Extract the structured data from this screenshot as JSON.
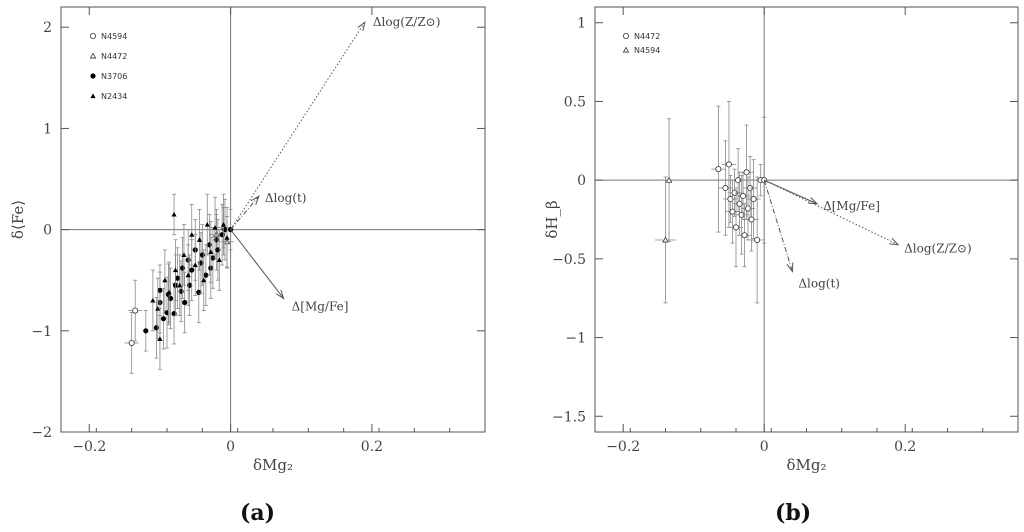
{
  "chart_data": [
    {
      "panel": "(a)",
      "type": "scatter",
      "xlabel": "δMg₂",
      "ylabel": "δ⟨Fe⟩",
      "xlim": [
        -0.24,
        0.36
      ],
      "ylim": [
        -2.0,
        2.2
      ],
      "xticks": [
        "−0.2",
        "0",
        "0.2"
      ],
      "xtick_values": [
        -0.2,
        0,
        0.2
      ],
      "yticks": [
        "−2",
        "−1",
        "0",
        "1",
        "2"
      ],
      "ytick_values": [
        -2,
        -1,
        0,
        1,
        2
      ],
      "legend": [
        {
          "label": "N4594",
          "marker": "open-circle"
        },
        {
          "label": "N4472",
          "marker": "open-triangle"
        },
        {
          "label": "N3706",
          "marker": "filled-circle"
        },
        {
          "label": "N2434",
          "marker": "filled-triangle"
        }
      ],
      "vectors": [
        {
          "label": "Δlog(Z/Z⊙)",
          "dx": 0.19,
          "dy": 2.05,
          "style": "dotted"
        },
        {
          "label": "Δlog(t)",
          "dx": 0.04,
          "dy": 0.33,
          "style": "dash-dot"
        },
        {
          "label": "Δ[Mg/Fe]",
          "dx": 0.075,
          "dy": -0.68,
          "style": "solid"
        }
      ],
      "series": [
        {
          "name": "N4594",
          "marker": "open-circle",
          "points": [
            {
              "x": -0.14,
              "y": -1.12,
              "ex": 0.01,
              "ey": 0.3
            },
            {
              "x": -0.135,
              "y": -0.8,
              "ex": 0.01,
              "ey": 0.3
            }
          ]
        },
        {
          "name": "N4472",
          "marker": "open-triangle",
          "points": [
            {
              "x": -0.02,
              "y": -0.05,
              "ex": 0.01,
              "ey": 0.2
            },
            {
              "x": -0.01,
              "y": 0.02,
              "ex": 0.01,
              "ey": 0.2
            },
            {
              "x": -0.005,
              "y": -0.12,
              "ex": 0.01,
              "ey": 0.25
            }
          ]
        },
        {
          "name": "N3706",
          "marker": "filled-circle",
          "points": [
            {
              "x": -0.12,
              "y": -1.0,
              "ey": 0.2
            },
            {
              "x": -0.105,
              "y": -0.97,
              "ey": 0.3
            },
            {
              "x": -0.1,
              "y": -0.72,
              "ey": 0.3
            },
            {
              "x": -0.1,
              "y": -0.6,
              "ey": 0.25
            },
            {
              "x": -0.095,
              "y": -0.88,
              "ey": 0.3
            },
            {
              "x": -0.09,
              "y": -0.82,
              "ey": 0.35
            },
            {
              "x": -0.088,
              "y": -0.64,
              "ey": 0.3
            },
            {
              "x": -0.085,
              "y": -0.68,
              "ey": 0.3
            },
            {
              "x": -0.08,
              "y": -0.83,
              "ey": 0.3
            },
            {
              "x": -0.078,
              "y": -0.55,
              "ey": 0.3
            },
            {
              "x": -0.075,
              "y": -0.48,
              "ey": 0.3
            },
            {
              "x": -0.07,
              "y": -0.61,
              "ey": 0.3
            },
            {
              "x": -0.068,
              "y": -0.38,
              "ey": 0.3
            },
            {
              "x": -0.065,
              "y": -0.72,
              "ey": 0.3
            },
            {
              "x": -0.06,
              "y": -0.3,
              "ey": 0.3
            },
            {
              "x": -0.058,
              "y": -0.55,
              "ey": 0.3
            },
            {
              "x": -0.055,
              "y": -0.4,
              "ey": 0.3
            },
            {
              "x": -0.05,
              "y": -0.2,
              "ey": 0.3
            },
            {
              "x": -0.045,
              "y": -0.62,
              "ey": 0.3
            },
            {
              "x": -0.042,
              "y": -0.33,
              "ey": 0.3
            },
            {
              "x": -0.04,
              "y": -0.25,
              "ey": 0.3
            },
            {
              "x": -0.035,
              "y": -0.45,
              "ey": 0.3
            },
            {
              "x": -0.03,
              "y": -0.15,
              "ey": 0.3
            },
            {
              "x": -0.028,
              "y": -0.38,
              "ey": 0.3
            },
            {
              "x": -0.025,
              "y": -0.28,
              "ey": 0.3
            },
            {
              "x": -0.02,
              "y": -0.1,
              "ey": 0.3
            },
            {
              "x": -0.018,
              "y": -0.2,
              "ey": 0.3
            },
            {
              "x": -0.012,
              "y": -0.05,
              "ey": 0.3
            },
            {
              "x": -0.008,
              "y": 0.0,
              "ey": 0.3
            },
            {
              "x": 0.0,
              "y": 0.0,
              "ey": 0.2
            }
          ]
        },
        {
          "name": "N2434",
          "marker": "filled-triangle",
          "points": [
            {
              "x": -0.11,
              "y": -0.7,
              "ey": 0.3
            },
            {
              "x": -0.103,
              "y": -0.78,
              "ey": 0.3
            },
            {
              "x": -0.1,
              "y": -1.08,
              "ey": 0.3
            },
            {
              "x": -0.093,
              "y": -0.5,
              "ey": 0.3
            },
            {
              "x": -0.087,
              "y": -0.62,
              "ey": 0.3
            },
            {
              "x": -0.08,
              "y": 0.15,
              "ey": 0.2
            },
            {
              "x": -0.078,
              "y": -0.4,
              "ey": 0.3
            },
            {
              "x": -0.072,
              "y": -0.55,
              "ey": 0.3
            },
            {
              "x": -0.066,
              "y": -0.25,
              "ey": 0.3
            },
            {
              "x": -0.06,
              "y": -0.45,
              "ey": 0.3
            },
            {
              "x": -0.055,
              "y": -0.05,
              "ey": 0.3
            },
            {
              "x": -0.05,
              "y": -0.35,
              "ey": 0.3
            },
            {
              "x": -0.044,
              "y": -0.1,
              "ey": 0.3
            },
            {
              "x": -0.038,
              "y": -0.5,
              "ey": 0.3
            },
            {
              "x": -0.033,
              "y": 0.05,
              "ey": 0.3
            },
            {
              "x": -0.028,
              "y": -0.22,
              "ey": 0.3
            },
            {
              "x": -0.022,
              "y": 0.02,
              "ey": 0.3
            },
            {
              "x": -0.016,
              "y": -0.3,
              "ey": 0.3
            },
            {
              "x": -0.01,
              "y": 0.05,
              "ey": 0.3
            },
            {
              "x": -0.005,
              "y": -0.08,
              "ey": 0.3
            }
          ]
        }
      ]
    },
    {
      "panel": "(b)",
      "type": "scatter",
      "xlabel": "δMg₂",
      "ylabel": "δH_β",
      "xlim": [
        -0.24,
        0.36
      ],
      "ylim": [
        -1.6,
        1.1
      ],
      "xticks": [
        "−0.2",
        "0",
        "0.2"
      ],
      "xtick_values": [
        -0.2,
        0,
        0.2
      ],
      "yticks": [
        "−1.5",
        "−1",
        "−0.5",
        "0",
        "0.5",
        "1"
      ],
      "ytick_values": [
        -1.5,
        -1,
        -0.5,
        0,
        0.5,
        1
      ],
      "legend": [
        {
          "label": "N4472",
          "marker": "open-circle"
        },
        {
          "label": "N4594",
          "marker": "open-triangle"
        }
      ],
      "vectors": [
        {
          "label": "Δ[Mg/Fe]",
          "dx": 0.075,
          "dy": -0.15,
          "style": "solid"
        },
        {
          "label": "Δlog(Z/Z⊙)",
          "dx": 0.19,
          "dy": -0.41,
          "style": "dotted"
        },
        {
          "label": "Δlog(t)",
          "dx": 0.04,
          "dy": -0.58,
          "style": "dash-dot"
        }
      ],
      "series": [
        {
          "name": "N4472",
          "marker": "open-circle",
          "points": [
            {
              "x": -0.065,
              "y": 0.07,
              "ex": 0.01,
              "ey": 0.4
            },
            {
              "x": -0.055,
              "y": -0.05,
              "ex": 0.01,
              "ey": 0.3
            },
            {
              "x": -0.05,
              "y": 0.1,
              "ex": 0.01,
              "ey": 0.4
            },
            {
              "x": -0.048,
              "y": -0.12,
              "ex": 0.01,
              "ey": 0.15
            },
            {
              "x": -0.045,
              "y": -0.2,
              "ex": 0.01,
              "ey": 0.2
            },
            {
              "x": -0.042,
              "y": -0.08,
              "ex": 0.01,
              "ey": 0.15
            },
            {
              "x": -0.04,
              "y": -0.3,
              "ex": 0.01,
              "ey": 0.25
            },
            {
              "x": -0.037,
              "y": 0.0,
              "ex": 0.01,
              "ey": 0.2
            },
            {
              "x": -0.035,
              "y": -0.15,
              "ex": 0.01,
              "ey": 0.2
            },
            {
              "x": -0.032,
              "y": -0.22,
              "ex": 0.01,
              "ey": 0.25
            },
            {
              "x": -0.03,
              "y": -0.1,
              "ex": 0.01,
              "ey": 0.15
            },
            {
              "x": -0.028,
              "y": -0.35,
              "ex": 0.01,
              "ey": 0.2
            },
            {
              "x": -0.025,
              "y": 0.05,
              "ex": 0.01,
              "ey": 0.3
            },
            {
              "x": -0.023,
              "y": -0.18,
              "ex": 0.01,
              "ey": 0.2
            },
            {
              "x": -0.02,
              "y": -0.05,
              "ex": 0.01,
              "ey": 0.2
            },
            {
              "x": -0.018,
              "y": -0.25,
              "ex": 0.01,
              "ey": 0.2
            },
            {
              "x": -0.015,
              "y": -0.12,
              "ex": 0.01,
              "ey": 0.25
            },
            {
              "x": -0.01,
              "y": -0.38,
              "ex": 0.01,
              "ey": 0.4
            },
            {
              "x": -0.005,
              "y": 0.0,
              "ex": 0.005,
              "ey": 0.1
            },
            {
              "x": 0.0,
              "y": 0.0,
              "ex": 0.005,
              "ey": 0.4
            }
          ]
        },
        {
          "name": "N4594",
          "marker": "open-triangle",
          "points": [
            {
              "x": -0.14,
              "y": -0.38,
              "ex": 0.015,
              "ey": 0.4
            },
            {
              "x": -0.135,
              "y": 0.0,
              "ex": 0.015,
              "ey": 0.39
            }
          ]
        }
      ]
    }
  ],
  "captions": {
    "a": "(a)",
    "b": "(b)"
  }
}
